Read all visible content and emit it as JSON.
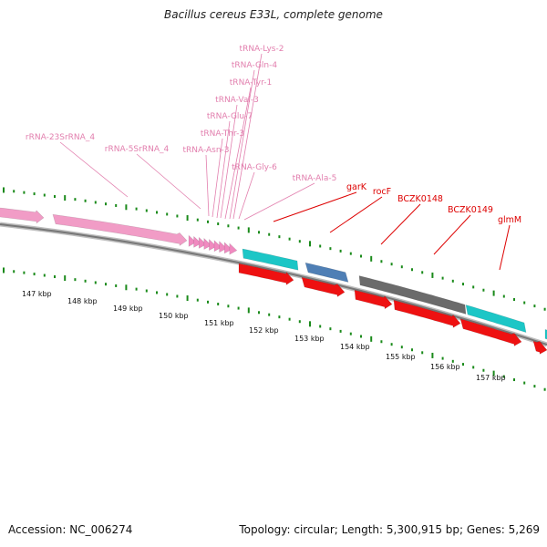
{
  "title": "Bacillus cereus E33L, complete genome",
  "footer": {
    "accession": "Accession: NC_006274",
    "topology": "Topology: circular; Length: 5,300,915 bp; Genes: 5,269"
  },
  "colors": {
    "rna_label": "#e27fae",
    "gene_label": "#dd0000",
    "rRNA": "#f19cc6",
    "tRNA": "#f08ac0",
    "gene_red": "#ee1111",
    "gene_cyan": "#1cc6c6",
    "gene_blue": "#4f7fb5",
    "gene_gray": "#6b6b6b",
    "tick": "#1a8a1a",
    "backbone": "#888888"
  },
  "scale_labels": [
    "147 kbp",
    "148 kbp",
    "149 kbp",
    "150 kbp",
    "151 kbp",
    "152 kbp",
    "153 kbp",
    "154 kbp",
    "155 kbp",
    "156 kbp",
    "157 kbp"
  ],
  "rna_labels": [
    "tRNA-Lys-2",
    "tRNA-Gln-4",
    "tRNA-Tyr-1",
    "tRNA-Val-3",
    "tRNA-Glu-7",
    "tRNA-Thr-3",
    "tRNA-Asn-3",
    "tRNA-Gly-6",
    "tRNA-Ala-5",
    "rRNA-23SrRNA_4",
    "rRNA-5SrRNA_4"
  ],
  "gene_labels": [
    "garK",
    "rocF",
    "BCZK0148",
    "BCZK0149",
    "glmM"
  ]
}
